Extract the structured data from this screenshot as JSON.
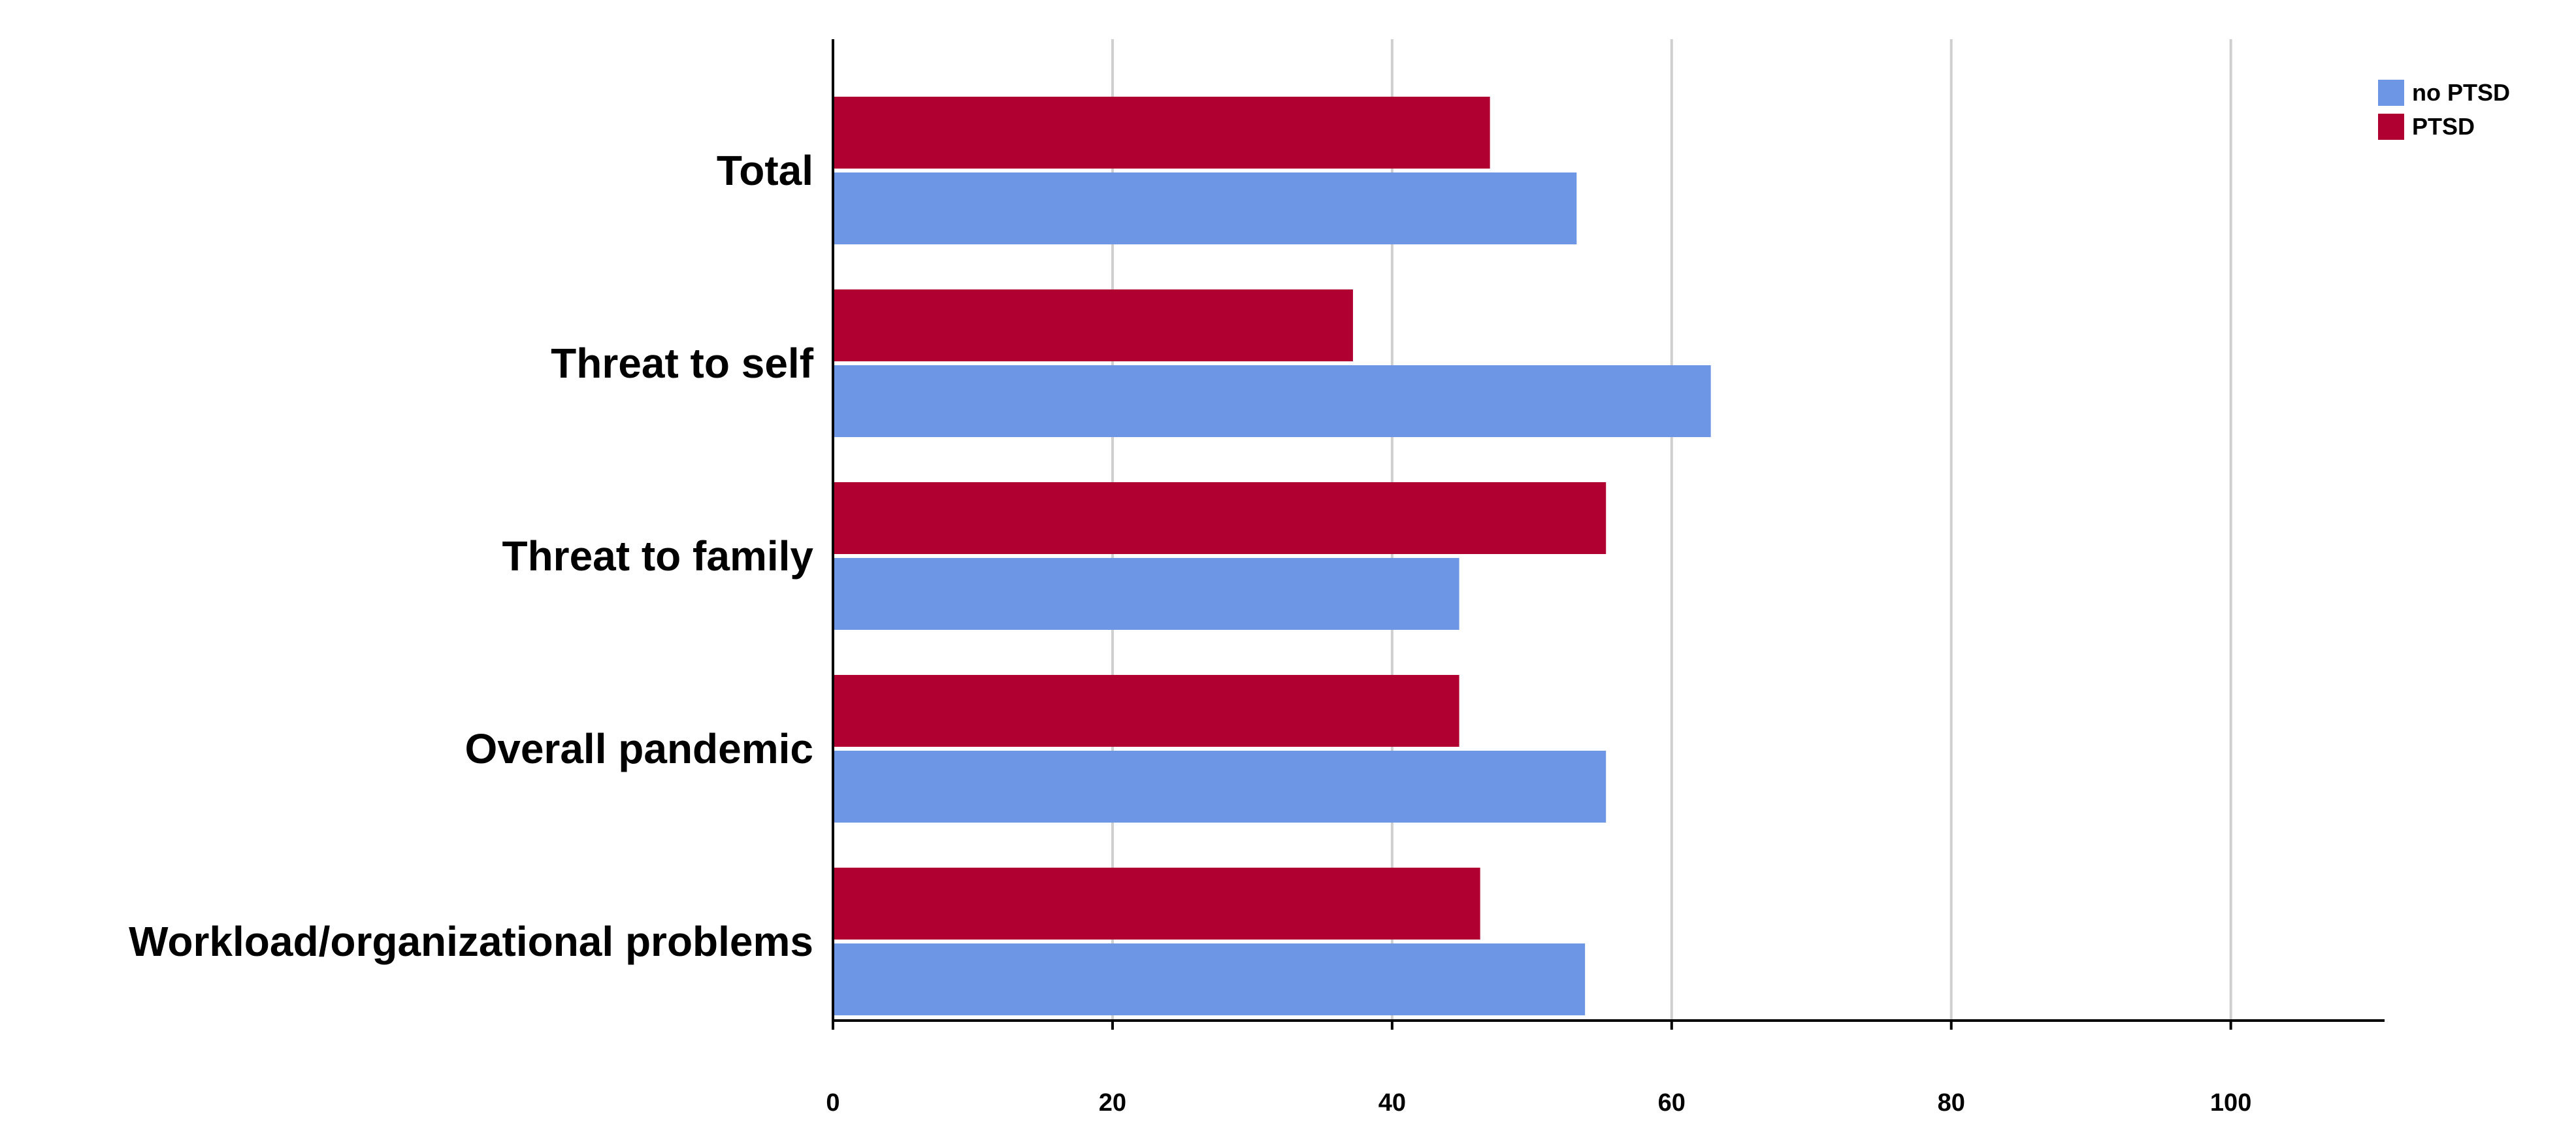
{
  "chart_data": {
    "type": "bar",
    "orientation": "horizontal",
    "categories": [
      "Total",
      "Threat to self",
      "Threat to family",
      "Overall pandemic",
      "Workload/organizational problems"
    ],
    "series": [
      {
        "name": "PTSD",
        "color": "#b00032",
        "values": [
          47,
          37.2,
          55.3,
          44.8,
          46.3
        ]
      },
      {
        "name": "no PTSD",
        "color": "#6d97e4",
        "values": [
          53.2,
          62.8,
          44.8,
          55.3,
          53.8
        ]
      }
    ],
    "xlim": [
      0,
      111
    ],
    "xticks": [
      0,
      20,
      40,
      60,
      80,
      100
    ],
    "xtick_labels": [
      "0",
      "20",
      "40",
      "60",
      "80",
      "100"
    ],
    "grid": "vertical",
    "legend": {
      "position": "top-right",
      "entries": [
        {
          "label": "no PTSD",
          "color": "#6d97e4"
        },
        {
          "label": "PTSD",
          "color": "#b00032"
        }
      ]
    }
  }
}
